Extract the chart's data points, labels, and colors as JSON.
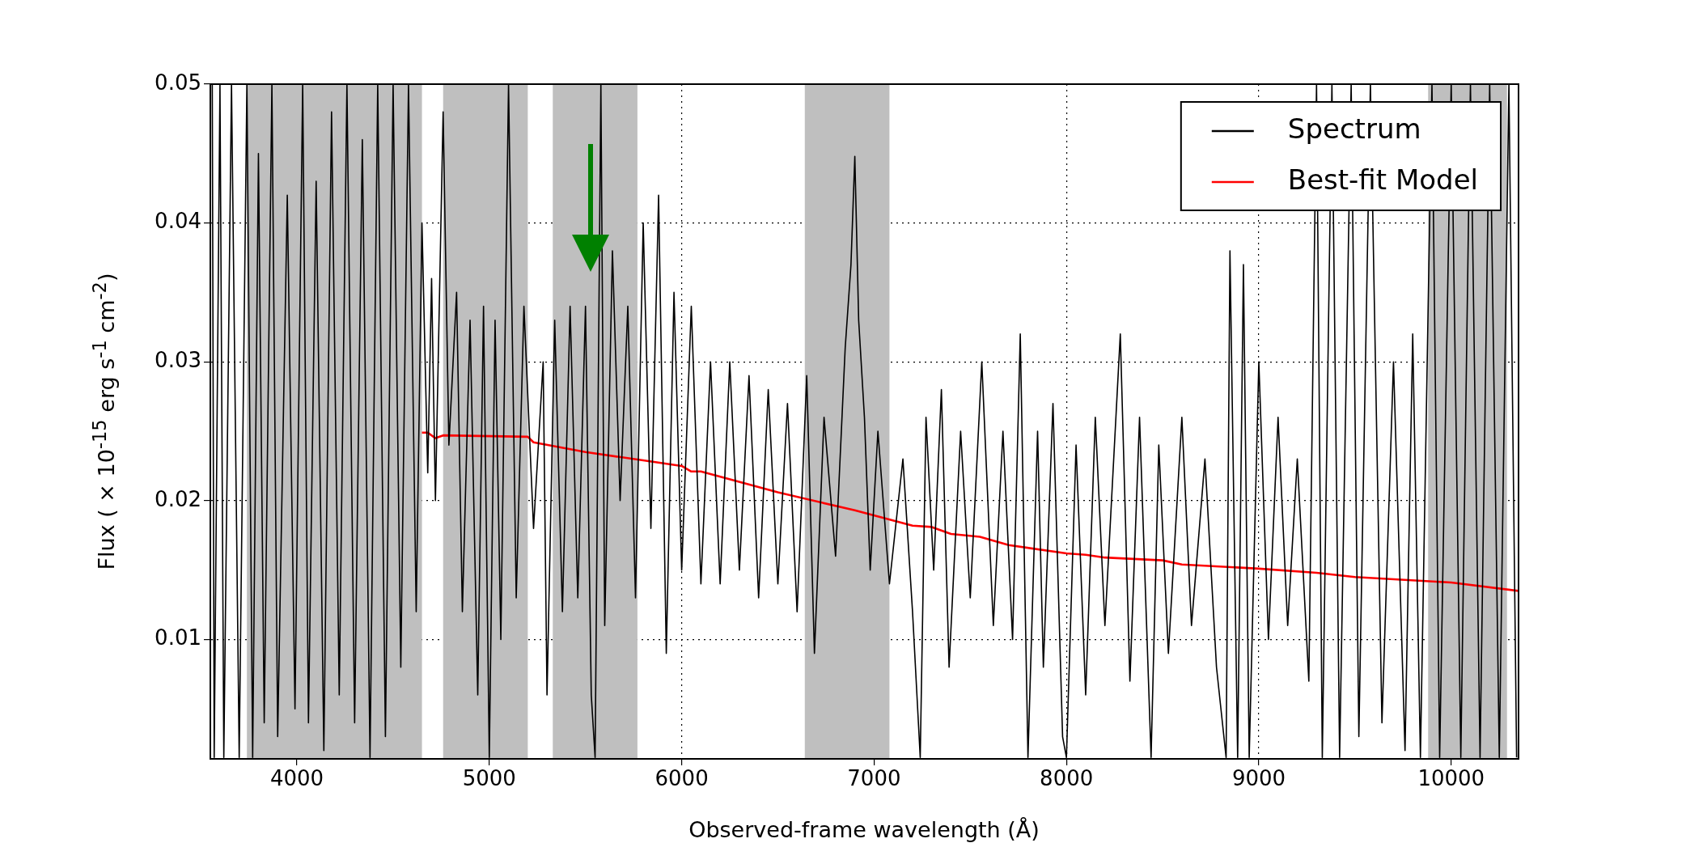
{
  "chart_data": {
    "type": "line",
    "xlabel": "Observed-frame wavelength (Å)",
    "ylabel": "Flux ( × 10$^{-15}$ erg s$^{-1}$ cm$^{-2}$)",
    "xlim": [
      3550,
      10350
    ],
    "xticks": [
      4000,
      5000,
      6000,
      7000,
      8000,
      9000,
      10000
    ],
    "ylim": [
      0.0014,
      0.05
    ],
    "yticks": [
      0.01,
      0.02,
      0.03,
      0.04,
      0.05
    ],
    "grid": true,
    "legend": "top right",
    "marker": "none",
    "line_style": "solid",
    "bands": [
      {
        "axis": "x",
        "from": 3740,
        "to": 4650,
        "color": "#bfbfbf"
      },
      {
        "axis": "x",
        "from": 4760,
        "to": 5200,
        "color": "#bfbfbf"
      },
      {
        "axis": "x",
        "from": 5330,
        "to": 5770,
        "color": "#bfbfbf"
      },
      {
        "axis": "x",
        "from": 6640,
        "to": 7080,
        "color": "#bfbfbf"
      },
      {
        "axis": "x",
        "from": 9880,
        "to": 10290,
        "color": "#bfbfbf"
      }
    ],
    "series": [
      {
        "name": "Spectrum",
        "color": "#000000",
        "x": [
          3560,
          3570,
          3600,
          3620,
          3660,
          3700,
          3740,
          3770,
          3800,
          3830,
          3870,
          3900,
          3950,
          3990,
          4030,
          4060,
          4100,
          4140,
          4180,
          4220,
          4260,
          4300,
          4340,
          4380,
          4420,
          4460,
          4500,
          4540,
          4580,
          4620,
          4650,
          4680,
          4700,
          4720,
          4760,
          4790,
          4830,
          4860,
          4900,
          4940,
          4970,
          5000,
          5030,
          5060,
          5100,
          5140,
          5180,
          5230,
          5280,
          5300,
          5340,
          5380,
          5420,
          5460,
          5500,
          5530,
          5550,
          5580,
          5600,
          5640,
          5680,
          5720,
          5760,
          5800,
          5840,
          5880,
          5920,
          5960,
          6000,
          6050,
          6100,
          6150,
          6200,
          6250,
          6300,
          6350,
          6400,
          6450,
          6500,
          6550,
          6600,
          6650,
          6690,
          6740,
          6800,
          6850,
          6880,
          6900,
          6920,
          6950,
          6980,
          7020,
          7080,
          7150,
          7200,
          7240,
          7270,
          7310,
          7350,
          7390,
          7450,
          7500,
          7560,
          7620,
          7670,
          7720,
          7760,
          7800,
          7850,
          7880,
          7930,
          7980,
          8000,
          8050,
          8100,
          8150,
          8200,
          8280,
          8330,
          8380,
          8440,
          8480,
          8530,
          8600,
          8650,
          8720,
          8780,
          8830,
          8850,
          8890,
          8920,
          8950,
          9000,
          9050,
          9100,
          9150,
          9200,
          9260,
          9300,
          9330,
          9380,
          9420,
          9480,
          9520,
          9580,
          9640,
          9700,
          9760,
          9800,
          9840,
          9900,
          9940,
          10000,
          10050,
          10100,
          10150,
          10200,
          10250,
          10300,
          10340
        ],
        "values": [
          0.05,
          0.0015,
          0.05,
          0.0015,
          0.05,
          0.0015,
          0.05,
          0.0015,
          0.045,
          0.004,
          0.05,
          0.003,
          0.042,
          0.005,
          0.05,
          0.004,
          0.043,
          0.002,
          0.048,
          0.006,
          0.05,
          0.004,
          0.046,
          0.0015,
          0.05,
          0.003,
          0.05,
          0.008,
          0.05,
          0.012,
          0.04,
          0.022,
          0.036,
          0.02,
          0.048,
          0.024,
          0.035,
          0.012,
          0.033,
          0.006,
          0.034,
          0.0015,
          0.033,
          0.01,
          0.05,
          0.013,
          0.034,
          0.018,
          0.03,
          0.006,
          0.033,
          0.012,
          0.034,
          0.013,
          0.034,
          0.006,
          0.0015,
          0.05,
          0.011,
          0.038,
          0.02,
          0.034,
          0.013,
          0.04,
          0.018,
          0.042,
          0.009,
          0.035,
          0.015,
          0.034,
          0.014,
          0.03,
          0.014,
          0.03,
          0.015,
          0.029,
          0.013,
          0.028,
          0.014,
          0.027,
          0.012,
          0.029,
          0.009,
          0.026,
          0.016,
          0.031,
          0.037,
          0.0448,
          0.033,
          0.026,
          0.015,
          0.025,
          0.014,
          0.023,
          0.012,
          0.0015,
          0.026,
          0.015,
          0.028,
          0.008,
          0.025,
          0.013,
          0.03,
          0.011,
          0.025,
          0.01,
          0.032,
          0.0015,
          0.025,
          0.008,
          0.027,
          0.003,
          0.0015,
          0.024,
          0.006,
          0.026,
          0.011,
          0.032,
          0.007,
          0.026,
          0.0015,
          0.024,
          0.009,
          0.026,
          0.011,
          0.023,
          0.008,
          0.0015,
          0.038,
          0.0015,
          0.037,
          0.0015,
          0.03,
          0.01,
          0.026,
          0.011,
          0.023,
          0.007,
          0.05,
          0.0015,
          0.05,
          0.0015,
          0.05,
          0.003,
          0.05,
          0.004,
          0.03,
          0.002,
          0.032,
          0.0015,
          0.05,
          0.0015,
          0.05,
          0.0015,
          0.05,
          0.0015,
          0.05,
          0.0015,
          0.05,
          0.0015
        ]
      },
      {
        "name": "Best-fit Model",
        "color": "#ff0000",
        "x": [
          4650,
          4680,
          4720,
          4760,
          5200,
          5230,
          5500,
          5800,
          6000,
          6050,
          6100,
          6500,
          6900,
          7200,
          7300,
          7400,
          7550,
          7700,
          8000,
          8100,
          8200,
          8500,
          8600,
          9000,
          9300,
          9500,
          10000,
          10350
        ],
        "values": [
          0.0249,
          0.0249,
          0.0245,
          0.0247,
          0.0246,
          0.0242,
          0.0235,
          0.0229,
          0.0225,
          0.0221,
          0.0221,
          0.0206,
          0.0193,
          0.0182,
          0.0181,
          0.0176,
          0.0174,
          0.0168,
          0.0162,
          0.0161,
          0.0159,
          0.0157,
          0.0154,
          0.0151,
          0.0148,
          0.0145,
          0.0141,
          0.0135
        ]
      }
    ]
  }
}
